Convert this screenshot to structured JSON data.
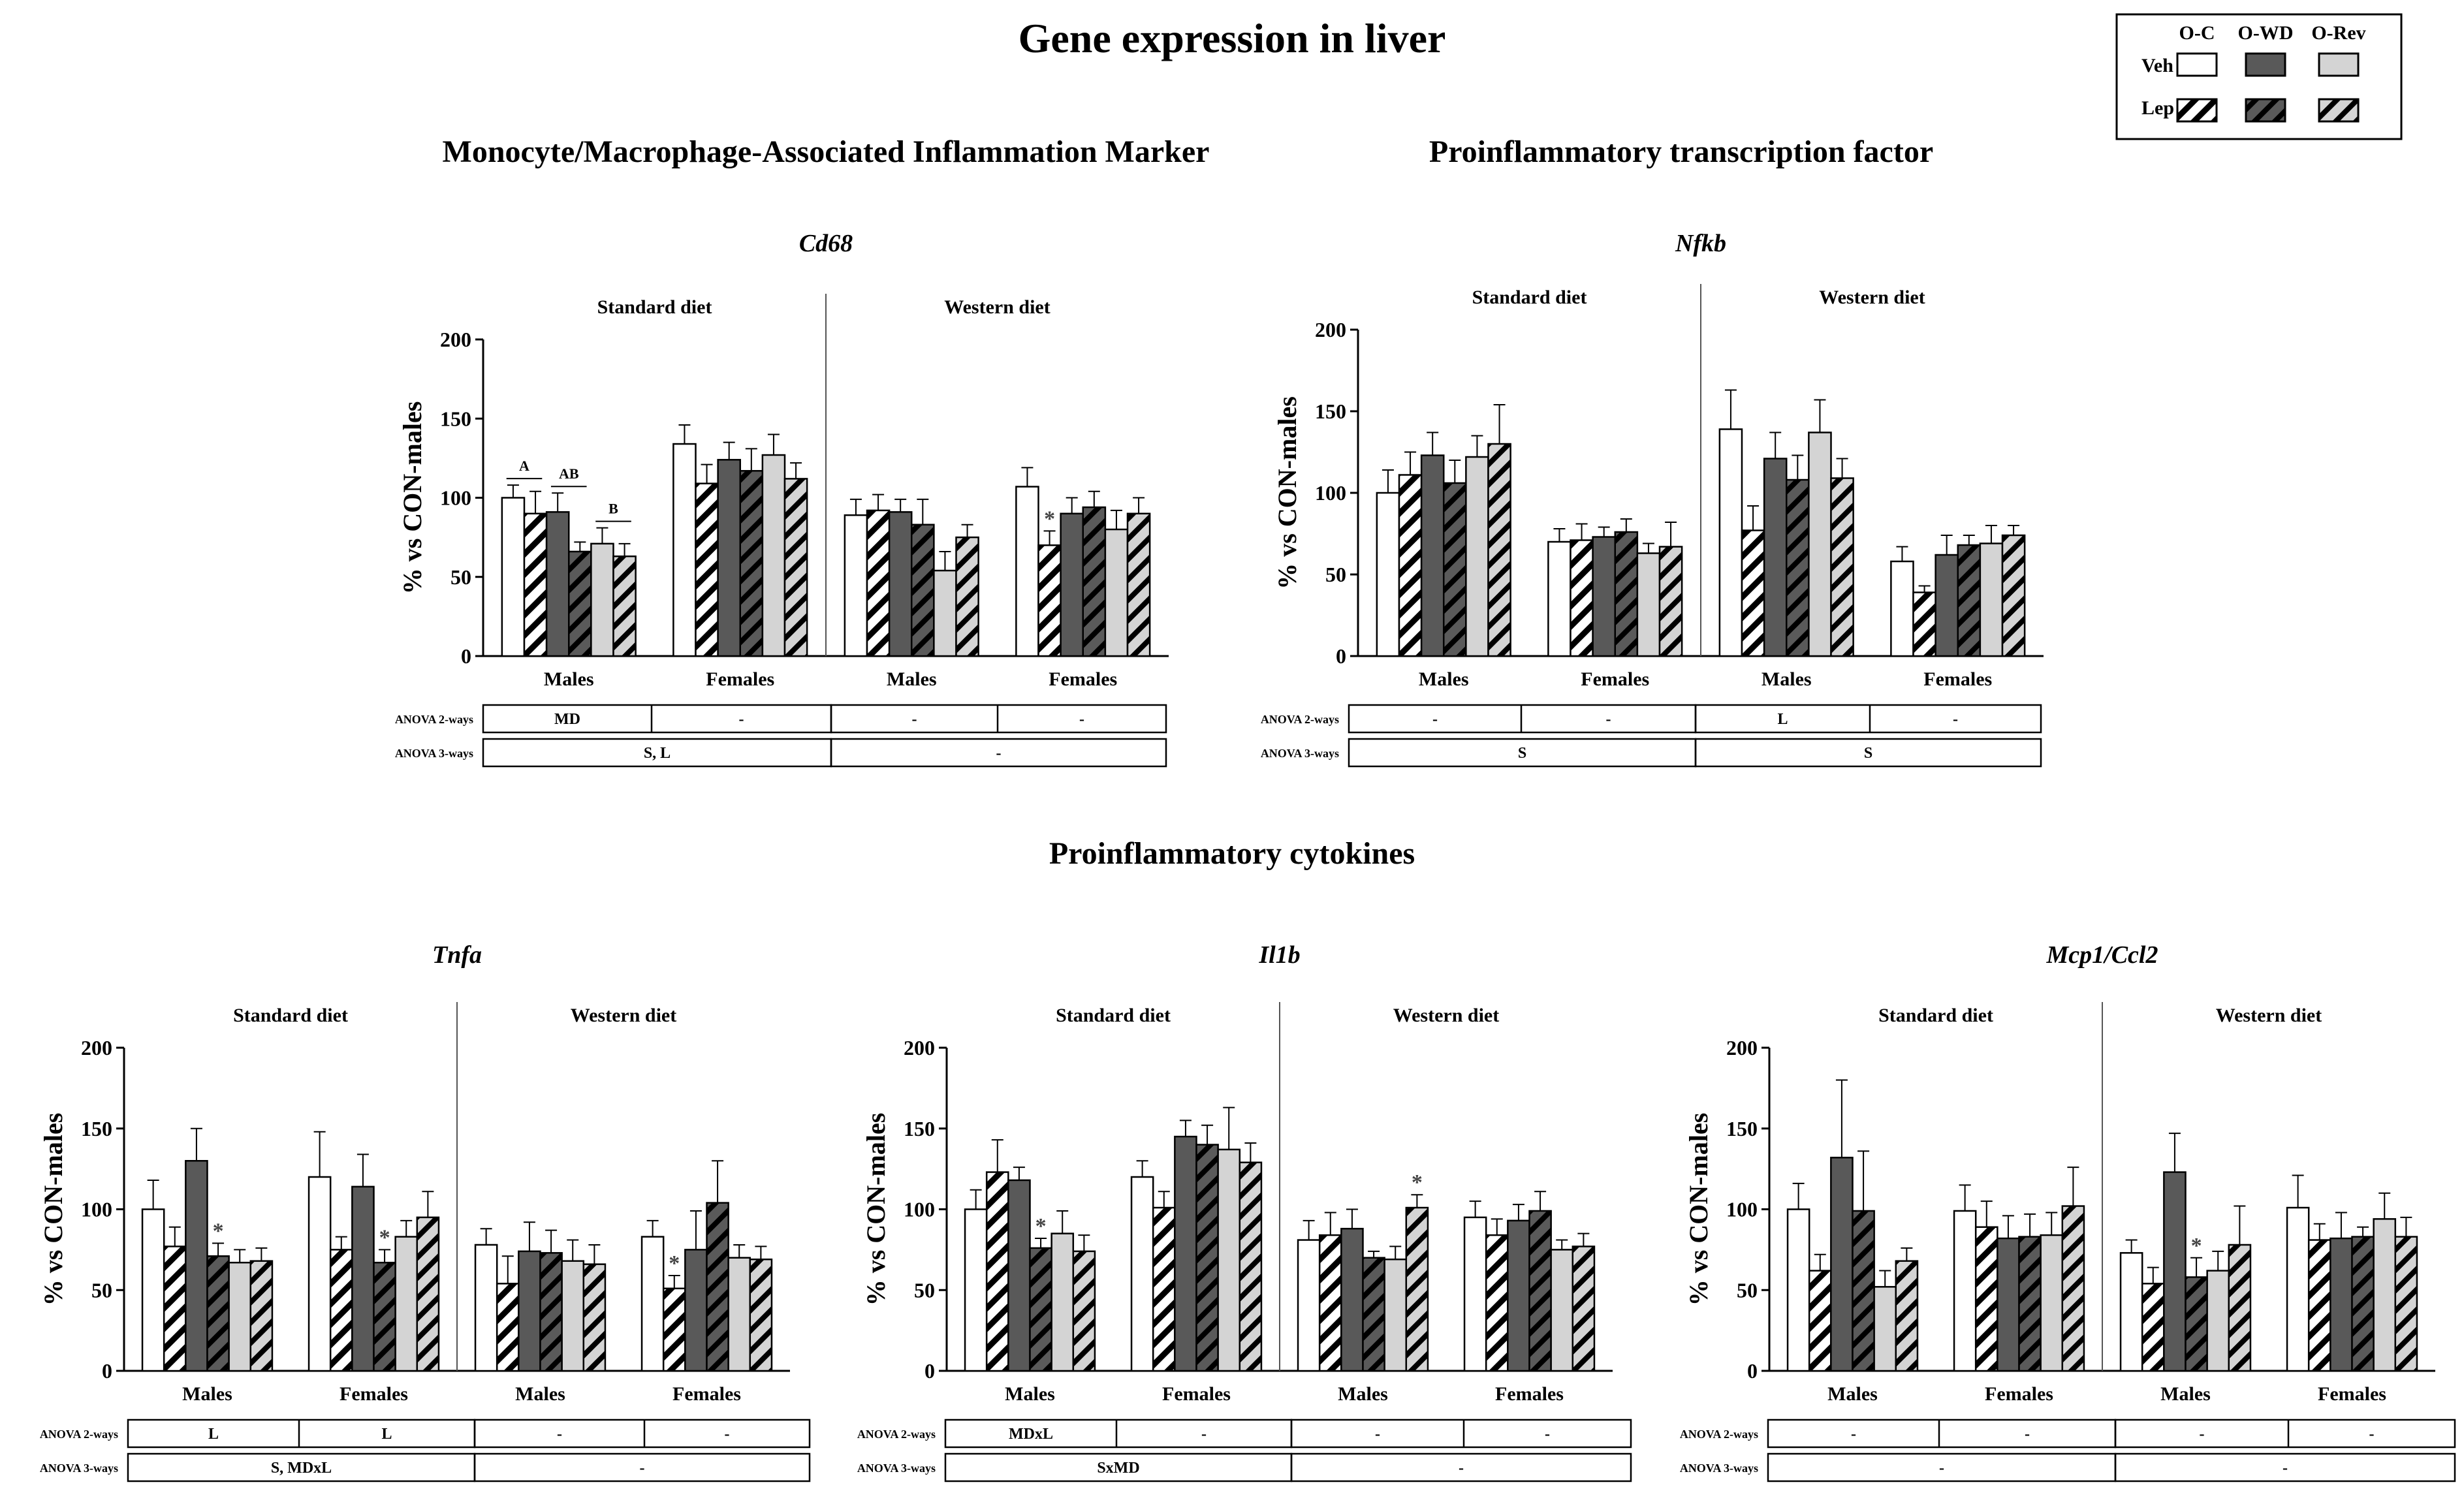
{
  "title": "Gene expression in liver",
  "legend": {
    "columns": [
      "O-C",
      "O-WD",
      "O-Rev"
    ],
    "rows": [
      "Veh",
      "Lep"
    ],
    "colors": {
      "O-C": "#ffffff",
      "O-WD": "#595959",
      "O-Rev": "#d4d4d4"
    }
  },
  "sections": {
    "monocyte": "Monocyte/Macrophage-Associated Inflammation Marker",
    "transcription": "Proinflammatory transcription factor",
    "cytokines": "Proinflammatory cytokines"
  },
  "anova_labels": {
    "two_way": "ANOVA 2-ways",
    "three_way": "ANOVA 3-ways"
  },
  "chart_data": [
    {
      "type": "bar",
      "gene": "Cd68",
      "ylabel": "% vs CON-males",
      "ylim": [
        0,
        200
      ],
      "yticks": [
        0,
        50,
        100,
        150,
        200
      ],
      "diets": [
        "Standard diet",
        "Western diet"
      ],
      "groups": [
        "Males",
        "Females",
        "Males",
        "Females"
      ],
      "series": [
        {
          "name": "O-C Veh",
          "values": [
            100,
            134,
            89,
            107
          ],
          "err": [
            8,
            12,
            10,
            12
          ]
        },
        {
          "name": "O-C Lep",
          "values": [
            90,
            109,
            92,
            70
          ],
          "err": [
            14,
            12,
            10,
            9
          ]
        },
        {
          "name": "O-WD Veh",
          "values": [
            91,
            124,
            91,
            90
          ],
          "err": [
            12,
            11,
            8,
            10
          ]
        },
        {
          "name": "O-WD Lep",
          "values": [
            66,
            117,
            83,
            94
          ],
          "err": [
            6,
            14,
            16,
            10
          ]
        },
        {
          "name": "O-Rev Veh",
          "values": [
            71,
            127,
            54,
            80
          ],
          "err": [
            10,
            13,
            12,
            12
          ]
        },
        {
          "name": "O-Rev Lep",
          "values": [
            63,
            112,
            75,
            90
          ],
          "err": [
            8,
            10,
            8,
            10
          ]
        }
      ],
      "annotations": [
        {
          "text": "A",
          "group": 0,
          "from": 0,
          "to": 1
        },
        {
          "text": "AB",
          "group": 0,
          "from": 2,
          "to": 3
        },
        {
          "text": "B",
          "group": 0,
          "from": 4,
          "to": 5
        },
        {
          "text": "*",
          "group": 3,
          "bar": 1
        }
      ],
      "anova2": [
        "MD",
        "-",
        "-",
        "-"
      ],
      "anova3": [
        "S, L",
        "-"
      ]
    },
    {
      "type": "bar",
      "gene": "Nfkb",
      "ylabel": "% vs CON-males",
      "ylim": [
        0,
        200
      ],
      "yticks": [
        0,
        50,
        100,
        150,
        200
      ],
      "diets": [
        "Standard diet",
        "Western diet"
      ],
      "groups": [
        "Males",
        "Females",
        "Males",
        "Females"
      ],
      "series": [
        {
          "name": "O-C Veh",
          "values": [
            100,
            70,
            139,
            58
          ],
          "err": [
            14,
            8,
            24,
            9
          ]
        },
        {
          "name": "O-C Lep",
          "values": [
            111,
            71,
            77,
            39
          ],
          "err": [
            14,
            10,
            15,
            4
          ]
        },
        {
          "name": "O-WD Veh",
          "values": [
            123,
            73,
            121,
            62
          ],
          "err": [
            14,
            6,
            16,
            12
          ]
        },
        {
          "name": "O-WD Lep",
          "values": [
            106,
            76,
            108,
            68
          ],
          "err": [
            14,
            8,
            15,
            6
          ]
        },
        {
          "name": "O-Rev Veh",
          "values": [
            122,
            63,
            137,
            69
          ],
          "err": [
            13,
            6,
            20,
            11
          ]
        },
        {
          "name": "O-Rev Lep",
          "values": [
            130,
            67,
            109,
            74
          ],
          "err": [
            24,
            15,
            12,
            6
          ]
        }
      ],
      "annotations": [],
      "anova2": [
        "-",
        "-",
        "L",
        "-"
      ],
      "anova3": [
        "S",
        "S"
      ]
    },
    {
      "type": "bar",
      "gene": "Tnfa",
      "ylabel": "% vs CON-males",
      "ylim": [
        0,
        200
      ],
      "yticks": [
        0,
        50,
        100,
        150,
        200
      ],
      "diets": [
        "Standard diet",
        "Western diet"
      ],
      "groups": [
        "Males",
        "Females",
        "Males",
        "Females"
      ],
      "series": [
        {
          "name": "O-C Veh",
          "values": [
            100,
            120,
            78,
            83
          ],
          "err": [
            18,
            28,
            10,
            10
          ]
        },
        {
          "name": "O-C Lep",
          "values": [
            77,
            75,
            54,
            51
          ],
          "err": [
            12,
            8,
            17,
            8
          ]
        },
        {
          "name": "O-WD Veh",
          "values": [
            130,
            114,
            74,
            75
          ],
          "err": [
            20,
            20,
            18,
            24
          ]
        },
        {
          "name": "O-WD Lep",
          "values": [
            71,
            67,
            73,
            104
          ],
          "err": [
            8,
            8,
            14,
            26
          ]
        },
        {
          "name": "O-Rev Veh",
          "values": [
            67,
            83,
            68,
            70
          ],
          "err": [
            8,
            10,
            13,
            8
          ]
        },
        {
          "name": "O-Rev Lep",
          "values": [
            68,
            95,
            66,
            69
          ],
          "err": [
            8,
            16,
            12,
            8
          ]
        }
      ],
      "annotations": [
        {
          "text": "*",
          "group": 0,
          "bar": 3
        },
        {
          "text": "*",
          "group": 1,
          "bar": 3
        },
        {
          "text": "*",
          "group": 3,
          "bar": 1
        }
      ],
      "anova2": [
        "L",
        "L",
        "-",
        "-"
      ],
      "anova3": [
        "S, MDxL",
        "-"
      ]
    },
    {
      "type": "bar",
      "gene": "Il1b",
      "ylabel": "% vs CON-males",
      "ylim": [
        0,
        200
      ],
      "yticks": [
        0,
        50,
        100,
        150,
        200
      ],
      "diets": [
        "Standard diet",
        "Western diet"
      ],
      "groups": [
        "Males",
        "Females",
        "Males",
        "Females"
      ],
      "series": [
        {
          "name": "O-C Veh",
          "values": [
            100,
            120,
            81,
            95
          ],
          "err": [
            12,
            10,
            12,
            10
          ]
        },
        {
          "name": "O-C Lep",
          "values": [
            123,
            101,
            84,
            84
          ],
          "err": [
            20,
            10,
            14,
            10
          ]
        },
        {
          "name": "O-WD Veh",
          "values": [
            118,
            145,
            88,
            93
          ],
          "err": [
            8,
            10,
            12,
            10
          ]
        },
        {
          "name": "O-WD Lep",
          "values": [
            76,
            140,
            70,
            99
          ],
          "err": [
            6,
            12,
            4,
            12
          ]
        },
        {
          "name": "O-Rev Veh",
          "values": [
            85,
            137,
            69,
            75
          ],
          "err": [
            14,
            26,
            8,
            6
          ]
        },
        {
          "name": "O-Rev Lep",
          "values": [
            74,
            129,
            101,
            77
          ],
          "err": [
            10,
            12,
            8,
            8
          ]
        }
      ],
      "annotations": [
        {
          "text": "*",
          "group": 0,
          "bar": 3
        },
        {
          "text": "*",
          "group": 2,
          "bar": 5
        }
      ],
      "anova2": [
        "MDxL",
        "-",
        "-",
        "-"
      ],
      "anova3": [
        "SxMD",
        "-"
      ]
    },
    {
      "type": "bar",
      "gene": "Mcp1/Ccl2",
      "ylabel": "% vs CON-males",
      "ylim": [
        0,
        200
      ],
      "yticks": [
        0,
        50,
        100,
        150,
        200
      ],
      "diets": [
        "Standard diet",
        "Western diet"
      ],
      "groups": [
        "Males",
        "Females",
        "Males",
        "Females"
      ],
      "series": [
        {
          "name": "O-C Veh",
          "values": [
            100,
            99,
            73,
            101
          ],
          "err": [
            16,
            16,
            8,
            20
          ]
        },
        {
          "name": "O-C Lep",
          "values": [
            62,
            89,
            54,
            81
          ],
          "err": [
            10,
            16,
            10,
            10
          ]
        },
        {
          "name": "O-WD Veh",
          "values": [
            132,
            82,
            123,
            82
          ],
          "err": [
            48,
            14,
            24,
            16
          ]
        },
        {
          "name": "O-WD Lep",
          "values": [
            99,
            83,
            58,
            83
          ],
          "err": [
            37,
            14,
            12,
            6
          ]
        },
        {
          "name": "O-Rev Veh",
          "values": [
            52,
            84,
            62,
            94
          ],
          "err": [
            10,
            14,
            12,
            16
          ]
        },
        {
          "name": "O-Rev Lep",
          "values": [
            68,
            102,
            78,
            83
          ],
          "err": [
            8,
            24,
            24,
            12
          ]
        }
      ],
      "annotations": [
        {
          "text": "*",
          "group": 2,
          "bar": 3
        }
      ],
      "anova2": [
        "-",
        "-",
        "-",
        "-"
      ],
      "anova3": [
        "-",
        "-"
      ]
    }
  ]
}
